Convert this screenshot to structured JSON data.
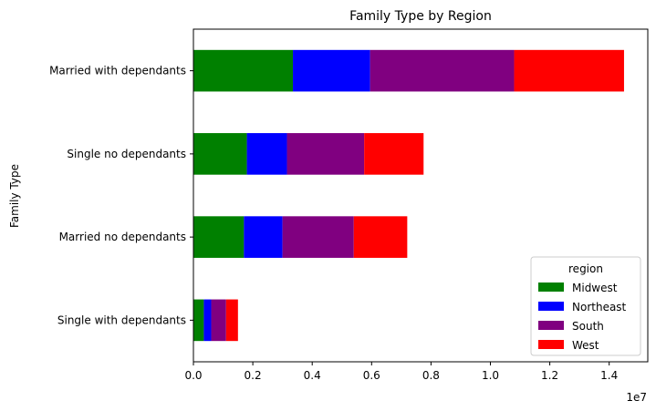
{
  "chart_data": {
    "type": "bar",
    "orientation": "horizontal",
    "stacked": true,
    "title": "Family Type by Region",
    "xlabel": "",
    "ylabel": "Family Type",
    "x_offset_label": "1e7",
    "xlim": [
      0,
      1.53
    ],
    "x_ticks": [
      0.0,
      0.2,
      0.4,
      0.6,
      0.8,
      1.0,
      1.2,
      1.4
    ],
    "x_tick_labels": [
      "0.0",
      "0.2",
      "0.4",
      "0.6",
      "0.8",
      "1.0",
      "1.2",
      "1.4"
    ],
    "categories": [
      "Single with dependants",
      "Married no dependants",
      "Single no dependants",
      "Married with dependants"
    ],
    "series": [
      {
        "name": "Midwest",
        "color": "#008000",
        "values": [
          0.035,
          0.17,
          0.18,
          0.335
        ]
      },
      {
        "name": "Northeast",
        "color": "#0000ff",
        "values": [
          0.025,
          0.13,
          0.135,
          0.26
        ]
      },
      {
        "name": "South",
        "color": "#800080",
        "values": [
          0.05,
          0.24,
          0.26,
          0.485
        ]
      },
      {
        "name": "West",
        "color": "#ff0000",
        "values": [
          0.04,
          0.18,
          0.2,
          0.37
        ]
      }
    ],
    "legend": {
      "title": "region",
      "position": "lower-right"
    },
    "grid": false
  }
}
